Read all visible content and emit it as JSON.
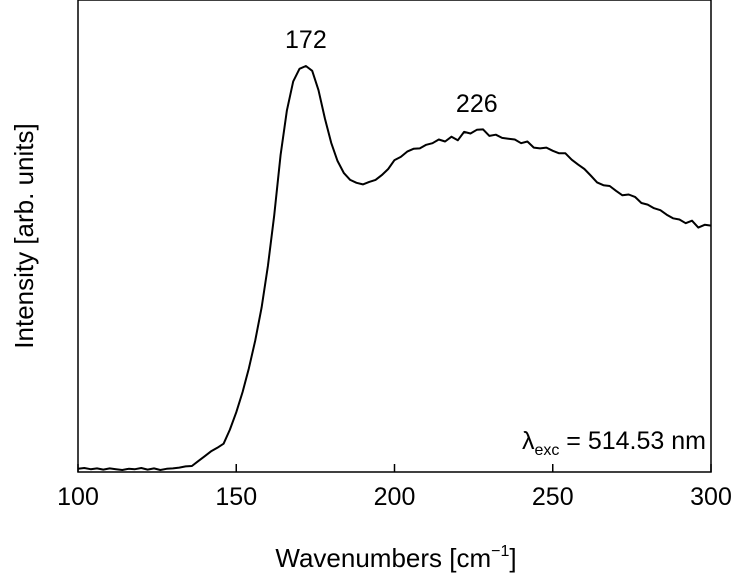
{
  "chart_data": {
    "type": "line",
    "xlabel": "Wavenumbers [cm",
    "xlabel_sup": "−1",
    "xlabel_end": "]",
    "ylabel": "Intensity [arb. units]",
    "xlim": [
      100,
      300
    ],
    "ylim": [
      0,
      100
    ],
    "x_ticks": [
      100,
      150,
      200,
      250,
      300
    ],
    "y_tick_labels": false,
    "grid": false,
    "line_color": "#000000",
    "peak_labels": [
      {
        "x": 172,
        "text": "172"
      },
      {
        "x": 226,
        "text": "226"
      }
    ],
    "annotation": {
      "symbol": "λ",
      "subscript": "exc",
      "text": " = 514.53 nm"
    },
    "series": [
      {
        "x": [
          100,
          102,
          104,
          106,
          108,
          110,
          112,
          114,
          116,
          118,
          120,
          122,
          124,
          126,
          128,
          130,
          132,
          134,
          136,
          138,
          140,
          142,
          144,
          146,
          148,
          150,
          152,
          154,
          156,
          158,
          160,
          162,
          164,
          166,
          168,
          170,
          172,
          174,
          176,
          178,
          180,
          182,
          184,
          186,
          188,
          190,
          192,
          194,
          196,
          198,
          200,
          202,
          204,
          206,
          208,
          210,
          212,
          214,
          216,
          218,
          220,
          222,
          224,
          226,
          228,
          230,
          232,
          234,
          236,
          238,
          240,
          242,
          244,
          246,
          248,
          250,
          252,
          254,
          256,
          258,
          260,
          262,
          264,
          266,
          268,
          270,
          272,
          274,
          276,
          278,
          280,
          282,
          284,
          286,
          288,
          290,
          292,
          294,
          296,
          298,
          300
        ],
        "y": [
          0.3,
          0.5,
          0.2,
          0.4,
          0.1,
          0.4,
          0.2,
          0.0,
          0.3,
          0.2,
          0.5,
          0.1,
          0.4,
          0.0,
          0.3,
          0.4,
          0.6,
          0.9,
          1.0,
          2.2,
          3.4,
          4.6,
          5.5,
          6.5,
          10.0,
          14.3,
          19.3,
          25.2,
          32.0,
          40.2,
          50.5,
          63.0,
          78.0,
          89.0,
          96.2,
          99.3,
          100.0,
          98.8,
          94.0,
          87.0,
          81.0,
          76.5,
          73.5,
          71.8,
          71.1,
          70.7,
          71.3,
          71.8,
          73.0,
          74.5,
          76.7,
          77.5,
          78.8,
          79.5,
          79.6,
          80.5,
          80.9,
          81.8,
          81.3,
          82.5,
          81.6,
          83.7,
          83.3,
          84.2,
          84.3,
          82.7,
          83.0,
          82.2,
          82.0,
          81.8,
          80.9,
          81.3,
          79.8,
          79.6,
          79.8,
          79.0,
          78.4,
          78.4,
          76.8,
          75.6,
          74.5,
          72.9,
          71.2,
          70.5,
          70.3,
          69.1,
          68.0,
          68.2,
          67.6,
          66.1,
          65.7,
          64.8,
          64.3,
          63.2,
          62.3,
          62.0,
          61.1,
          61.7,
          60.0,
          60.7,
          60.5
        ]
      }
    ]
  }
}
